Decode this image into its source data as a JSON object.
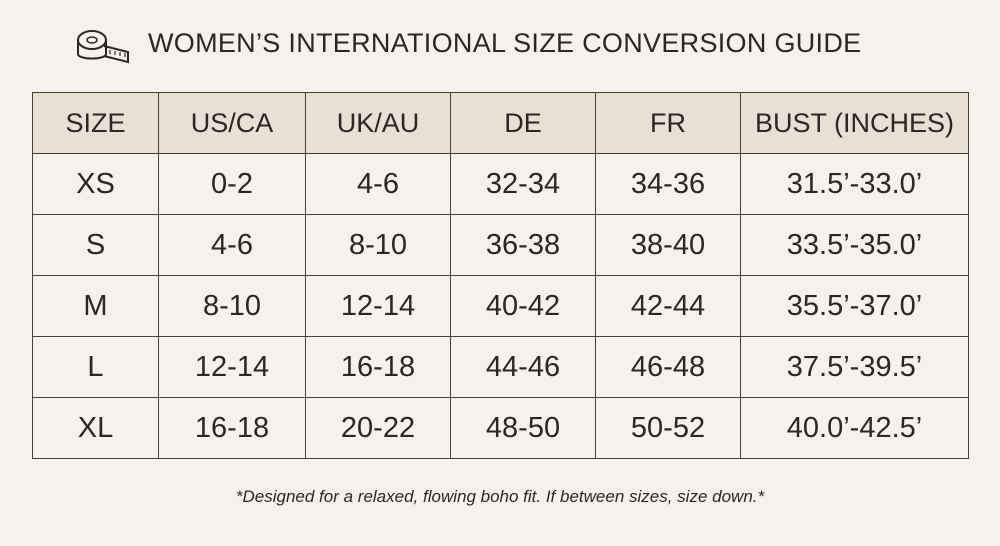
{
  "header": {
    "title": "WOMEN’S INTERNATIONAL SIZE CONVERSION GUIDE"
  },
  "table": {
    "columns": [
      "SIZE",
      "US/CA",
      "UK/AU",
      "DE",
      "FR",
      "BUST (INCHES)"
    ],
    "rows": [
      [
        "XS",
        "0-2",
        "4-6",
        "32-34",
        "34-36",
        "31.5’-33.0’"
      ],
      [
        "S",
        "4-6",
        "8-10",
        "36-38",
        "38-40",
        "33.5’-35.0’"
      ],
      [
        "M",
        "8-10",
        "12-14",
        "40-42",
        "42-44",
        "35.5’-37.0’"
      ],
      [
        "L",
        "12-14",
        "16-18",
        "44-46",
        "46-48",
        "37.5’-39.5’"
      ],
      [
        "XL",
        "16-18",
        "20-22",
        "48-50",
        "50-52",
        "40.0’-42.5’"
      ]
    ]
  },
  "footnote": "*Designed for a relaxed, flowing boho fit. If between sizes, size down.*"
}
